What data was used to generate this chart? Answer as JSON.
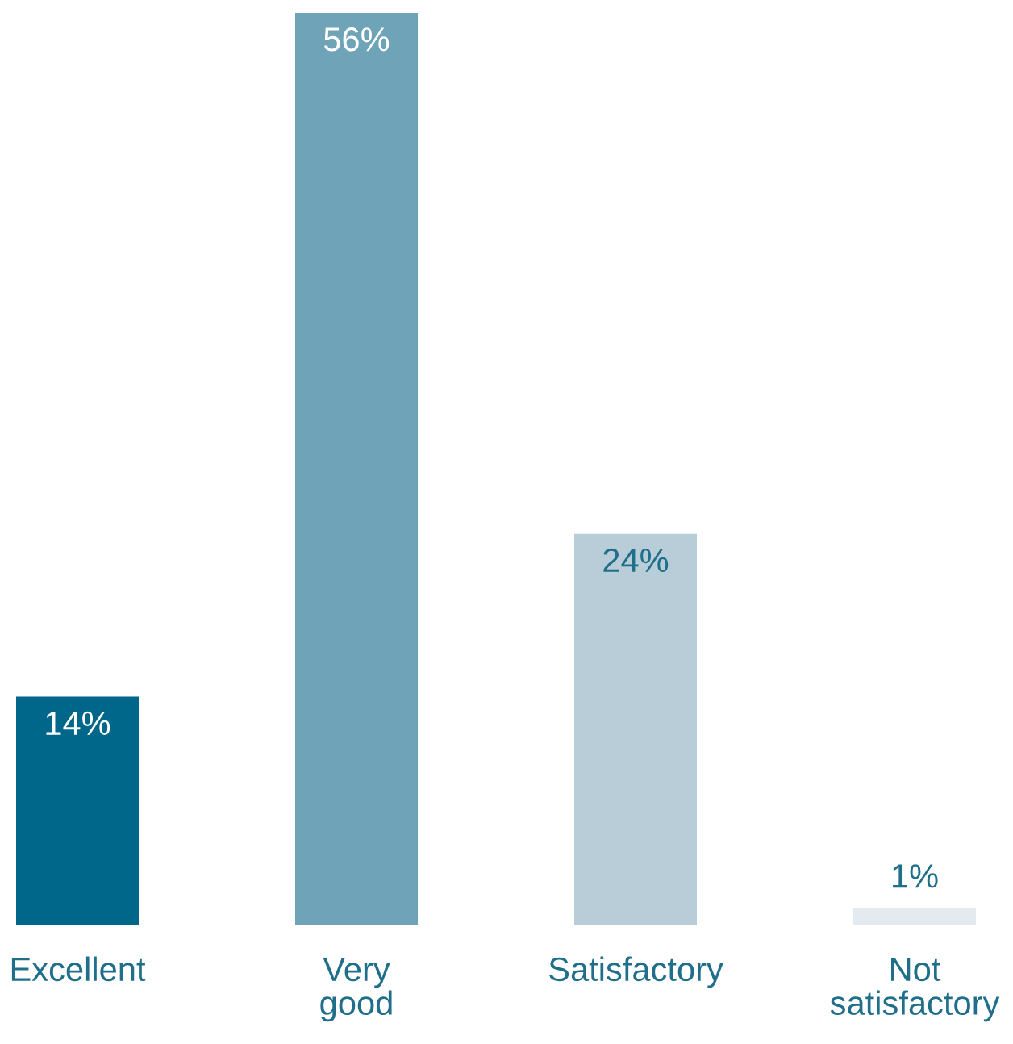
{
  "chart_data": {
    "type": "bar",
    "categories": [
      "Excellent",
      "Very\ngood",
      "Satisfactory",
      "Not\nsatisfactory"
    ],
    "values": [
      14,
      56,
      24,
      1
    ],
    "colors": [
      "#00678a",
      "#6fa3b8",
      "#b8cdd8",
      "#e3ebf0"
    ],
    "value_labels": [
      "14%",
      "56%",
      "24%",
      "1%"
    ]
  }
}
